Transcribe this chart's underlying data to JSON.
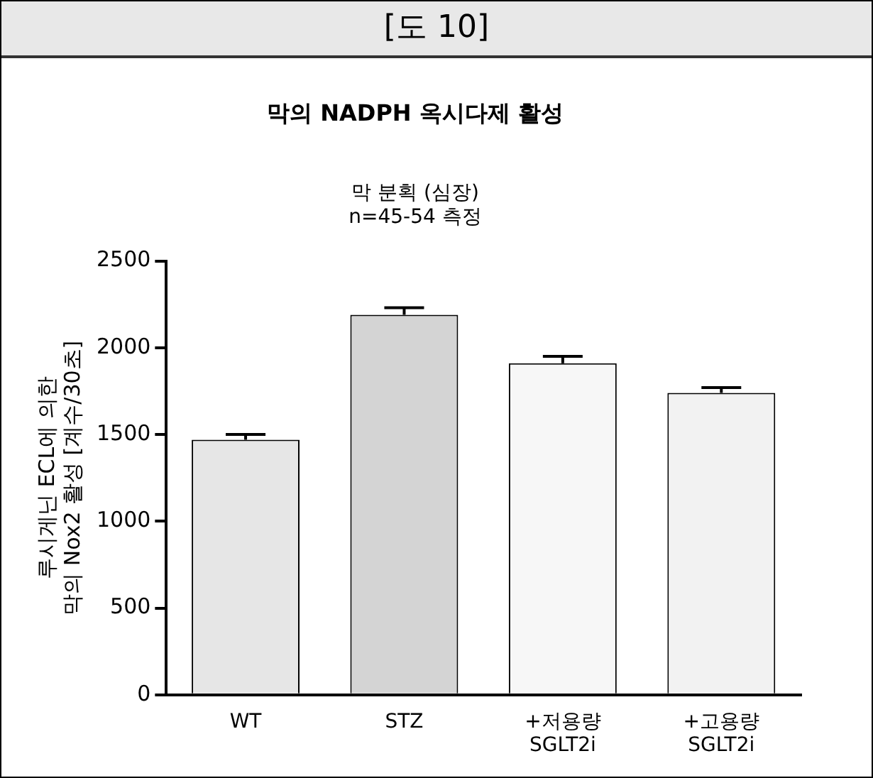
{
  "chart_data": {
    "type": "bar",
    "annotations": [
      "[도 10]"
    ],
    "title": "막의 NADPH 옥시다제 활성",
    "subtitle": "막 분획 (심장)\nn=45-54 측정",
    "ylabel": "루시게닌 ECL에 의한\n막의 Nox2 활성 [계수/30초]",
    "categories": [
      "WT",
      "STZ",
      "+저용량\nSGLT2i",
      "+고용량\nSGLT2i"
    ],
    "values": [
      1470,
      2190,
      1910,
      1740
    ],
    "errors": [
      30,
      40,
      40,
      30
    ],
    "colors": [
      "#e6e6e6",
      "#d4d4d4",
      "#f7f7f7",
      "#f2f2f2"
    ],
    "ylim": [
      0,
      2500
    ],
    "yticks": [
      0,
      500,
      1000,
      1500,
      2000,
      2500
    ],
    "grid": false,
    "legend": false
  }
}
